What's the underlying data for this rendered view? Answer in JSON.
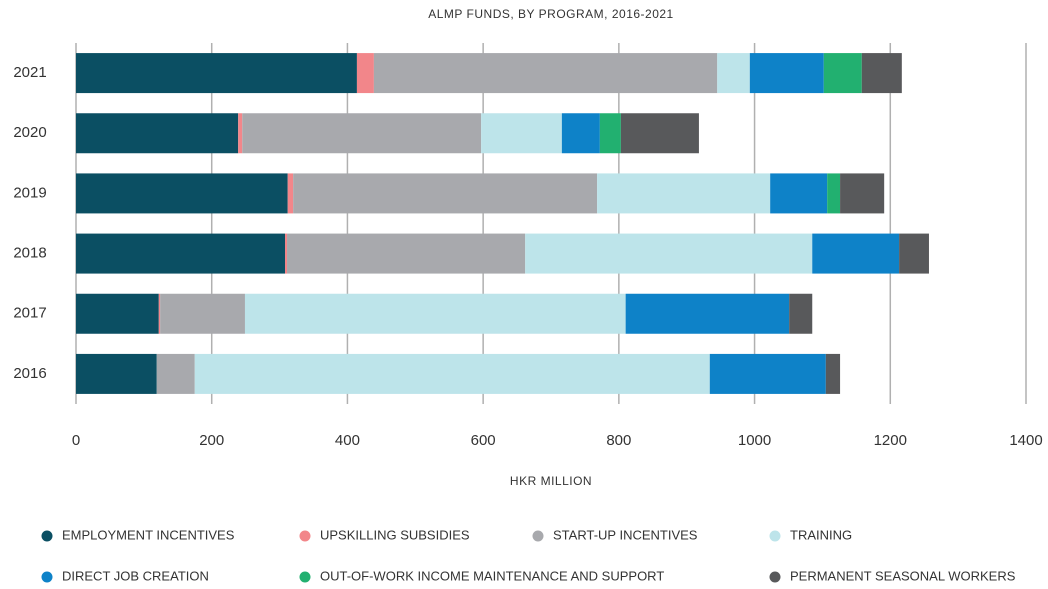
{
  "chart_data": {
    "type": "stacked-bar-horizontal",
    "title": "ALMP FUNDS, BY PROGRAM, 2016-2021",
    "x_label": "HKR MILLION",
    "categories": [
      "2021",
      "2020",
      "2019",
      "2018",
      "2017",
      "2016"
    ],
    "series": [
      {
        "name": "EMPLOYMENT INCENTIVES",
        "color": "#0b4f63",
        "values": [
          414,
          239,
          312,
          308,
          122,
          119
        ]
      },
      {
        "name": "UPSKILLING SUBSIDIES",
        "color": "#f2868a",
        "values": [
          25,
          6,
          8,
          3,
          2,
          0
        ]
      },
      {
        "name": "START-UP INCENTIVES",
        "color": "#a8a9ad",
        "values": [
          506,
          352,
          448,
          351,
          125,
          56
        ]
      },
      {
        "name": "TRAINING",
        "color": "#bde4ea",
        "values": [
          48,
          119,
          255,
          423,
          561,
          759
        ]
      },
      {
        "name": "DIRECT JOB CREATION",
        "color": "#0e82c8",
        "values": [
          109,
          56,
          84,
          128,
          241,
          171
        ]
      },
      {
        "name": "OUT-OF-WORK INCOME MAINTENANCE AND  SUPPORT",
        "color": "#22b070",
        "values": [
          56,
          31,
          19,
          0,
          0,
          0
        ]
      },
      {
        "name": "PERMANENT SEASONAL WORKERS",
        "color": "#58595b",
        "values": [
          59,
          115,
          65,
          44,
          34,
          21
        ]
      }
    ],
    "xlim": [
      0,
      1400
    ],
    "xticks": [
      0,
      200,
      400,
      600,
      800,
      1000,
      1200,
      1400
    ],
    "grid": true,
    "legend": "bottom"
  }
}
